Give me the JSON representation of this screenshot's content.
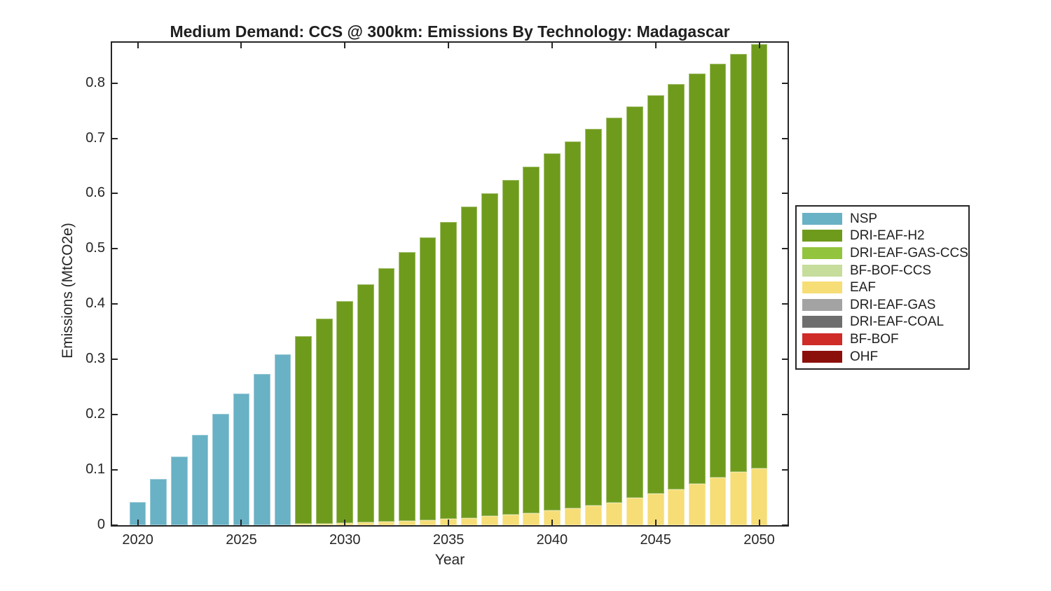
{
  "figure": {
    "title": "Medium Demand: CCS @ 300km: Emissions By Technology: Madagascar",
    "xlabel": "Year",
    "ylabel": "Emissions (MtCO2e)"
  },
  "colors": {
    "background": "#ffffff",
    "axis": "#262626",
    "NSP": "#69B1C5",
    "DRI-EAF-H2": "#6F9B1D",
    "DRI-EAF-GAS-CCS": "#93C43E",
    "BF-BOF-CCS": "#C6DD9B",
    "EAF": "#F6DD76",
    "DRI-EAF-GAS": "#A3A3A3",
    "DRI-EAF-COAL": "#6E6E6E",
    "BF-BOF": "#CF2B27",
    "OHF": "#8B100C"
  },
  "chart_data": {
    "type": "bar",
    "stacked": true,
    "title": "Medium Demand: CCS @ 300km: Emissions By Technology: Madagascar",
    "xlabel": "Year",
    "ylabel": "Emissions (MtCO2e)",
    "xlim": [
      2018.76,
      2051.37
    ],
    "ylim": [
      0,
      0.873
    ],
    "x_ticks": [
      2020,
      2025,
      2030,
      2035,
      2040,
      2045,
      2050
    ],
    "y_ticks": [
      0,
      0.1,
      0.2,
      0.3,
      0.4,
      0.5,
      0.6,
      0.7,
      0.8
    ],
    "grid": false,
    "legend_position": "right-outside",
    "bar_width_fraction": 0.8,
    "x": [
      2020,
      2021,
      2022,
      2023,
      2024,
      2025,
      2026,
      2027,
      2028,
      2029,
      2030,
      2031,
      2032,
      2033,
      2034,
      2035,
      2036,
      2037,
      2038,
      2039,
      2040,
      2041,
      2042,
      2043,
      2044,
      2045,
      2046,
      2047,
      2048,
      2049,
      2050
    ],
    "series": [
      {
        "name": "EAF",
        "color": "#F6DD76",
        "values": [
          0,
          0,
          0,
          0,
          0,
          0,
          0,
          0,
          0.002,
          0.003,
          0.004,
          0.005,
          0.006,
          0.007,
          0.009,
          0.011,
          0.013,
          0.016,
          0.019,
          0.022,
          0.026,
          0.03,
          0.036,
          0.041,
          0.049,
          0.057,
          0.065,
          0.075,
          0.086,
          0.096,
          0.103
        ]
      },
      {
        "name": "DRI-EAF-H2",
        "color": "#6F9B1D",
        "values": [
          0,
          0,
          0,
          0,
          0,
          0,
          0,
          0,
          0.34,
          0.371,
          0.402,
          0.431,
          0.459,
          0.487,
          0.512,
          0.538,
          0.563,
          0.584,
          0.606,
          0.627,
          0.647,
          0.665,
          0.681,
          0.697,
          0.709,
          0.721,
          0.733,
          0.742,
          0.749,
          0.757,
          0.767
        ]
      },
      {
        "name": "NSP",
        "color": "#69B1C5",
        "values": [
          0.042,
          0.084,
          0.124,
          0.163,
          0.201,
          0.238,
          0.274,
          0.309,
          0,
          0,
          0,
          0,
          0,
          0,
          0,
          0,
          0,
          0,
          0,
          0,
          0,
          0,
          0,
          0,
          0,
          0,
          0,
          0,
          0,
          0,
          0
        ]
      }
    ],
    "legend_entries": [
      {
        "label": "NSP",
        "color": "#69B1C5"
      },
      {
        "label": "DRI-EAF-H2",
        "color": "#6F9B1D"
      },
      {
        "label": "DRI-EAF-GAS-CCS",
        "color": "#93C43E"
      },
      {
        "label": "BF-BOF-CCS",
        "color": "#C6DD9B"
      },
      {
        "label": "EAF",
        "color": "#F6DD76"
      },
      {
        "label": "DRI-EAF-GAS",
        "color": "#A3A3A3"
      },
      {
        "label": "DRI-EAF-COAL",
        "color": "#6E6E6E"
      },
      {
        "label": "BF-BOF",
        "color": "#CF2B27"
      },
      {
        "label": "OHF",
        "color": "#8B100C"
      }
    ]
  }
}
